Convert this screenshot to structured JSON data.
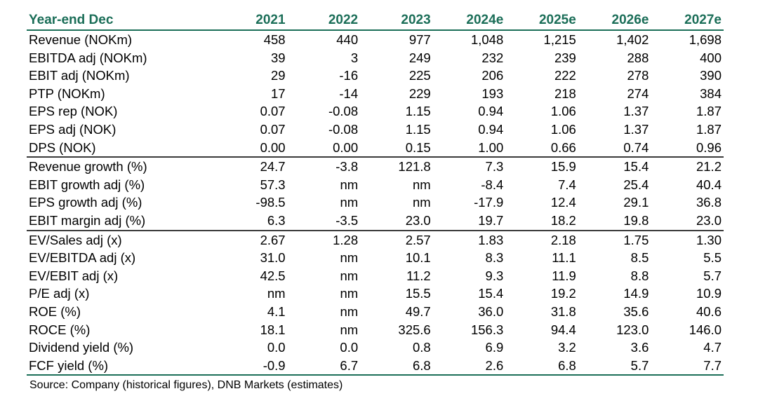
{
  "table": {
    "header": [
      "Year-end Dec",
      "2021",
      "2022",
      "2023",
      "2024e",
      "2025e",
      "2026e",
      "2027e"
    ],
    "rows": [
      {
        "label": "Revenue (NOKm)",
        "values": [
          "458",
          "440",
          "977",
          "1,048",
          "1,215",
          "1,402",
          "1,698"
        ]
      },
      {
        "label": "EBITDA adj (NOKm)",
        "values": [
          "39",
          "3",
          "249",
          "232",
          "239",
          "288",
          "400"
        ]
      },
      {
        "label": "EBIT adj (NOKm)",
        "values": [
          "29",
          "-16",
          "225",
          "206",
          "222",
          "278",
          "390"
        ]
      },
      {
        "label": "PTP (NOKm)",
        "values": [
          "17",
          "-14",
          "229",
          "193",
          "218",
          "274",
          "384"
        ]
      },
      {
        "label": "EPS rep (NOK)",
        "values": [
          "0.07",
          "-0.08",
          "1.15",
          "0.94",
          "1.06",
          "1.37",
          "1.87"
        ]
      },
      {
        "label": "EPS adj (NOK)",
        "values": [
          "0.07",
          "-0.08",
          "1.15",
          "0.94",
          "1.06",
          "1.37",
          "1.87"
        ]
      },
      {
        "label": "DPS (NOK)",
        "values": [
          "0.00",
          "0.00",
          "0.15",
          "1.00",
          "0.66",
          "0.74",
          "0.96"
        ]
      },
      {
        "label": "Revenue growth (%)",
        "values": [
          "24.7",
          "-3.8",
          "121.8",
          "7.3",
          "15.9",
          "15.4",
          "21.2"
        ]
      },
      {
        "label": "EBIT growth adj (%)",
        "values": [
          "57.3",
          "nm",
          "nm",
          "-8.4",
          "7.4",
          "25.4",
          "40.4"
        ]
      },
      {
        "label": "EPS growth adj (%)",
        "values": [
          "-98.5",
          "nm",
          "nm",
          "-17.9",
          "12.4",
          "29.1",
          "36.8"
        ]
      },
      {
        "label": "EBIT margin adj (%)",
        "values": [
          "6.3",
          "-3.5",
          "23.0",
          "19.7",
          "18.2",
          "19.8",
          "23.0"
        ]
      },
      {
        "label": "EV/Sales adj (x)",
        "values": [
          "2.67",
          "1.28",
          "2.57",
          "1.83",
          "2.18",
          "1.75",
          "1.30"
        ]
      },
      {
        "label": "EV/EBITDA adj (x)",
        "values": [
          "31.0",
          "nm",
          "10.1",
          "8.3",
          "11.1",
          "8.5",
          "5.5"
        ]
      },
      {
        "label": "EV/EBIT adj (x)",
        "values": [
          "42.5",
          "nm",
          "11.2",
          "9.3",
          "11.9",
          "8.8",
          "5.7"
        ]
      },
      {
        "label": "P/E adj (x)",
        "values": [
          "nm",
          "nm",
          "15.5",
          "15.4",
          "19.2",
          "14.9",
          "10.9"
        ]
      },
      {
        "label": "ROE (%)",
        "values": [
          "4.1",
          "nm",
          "49.7",
          "36.0",
          "31.8",
          "35.6",
          "40.6"
        ]
      },
      {
        "label": "ROCE (%)",
        "values": [
          "18.1",
          "nm",
          "325.6",
          "156.3",
          "94.4",
          "123.0",
          "146.0"
        ]
      },
      {
        "label": "Dividend yield (%)",
        "values": [
          "0.0",
          "0.0",
          "0.8",
          "6.9",
          "3.2",
          "3.6",
          "4.7"
        ]
      },
      {
        "label": "FCF yield (%)",
        "values": [
          "-0.9",
          "6.7",
          "6.8",
          "2.6",
          "6.8",
          "5.7",
          "7.7"
        ]
      }
    ]
  },
  "source": "Source: Company (historical figures), DNB Markets (estimates)",
  "colors": {
    "accent": "#1b6e58",
    "separator": "#3a3a3a"
  }
}
